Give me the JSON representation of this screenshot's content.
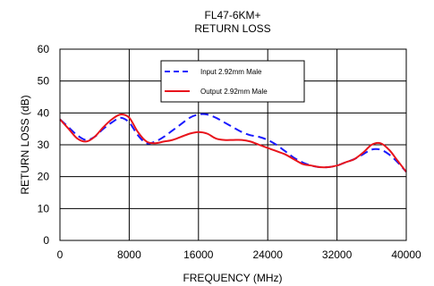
{
  "chart_data": {
    "type": "line",
    "title": "FL47-6KM+",
    "subtitle": "RETURN LOSS",
    "xlabel": "FREQUENCY (MHz)",
    "ylabel": "RETURN LOSS (dB)",
    "xlim": [
      0,
      40000
    ],
    "ylim": [
      0,
      60
    ],
    "xticks": [
      0,
      8000,
      16000,
      24000,
      32000,
      40000
    ],
    "yticks": [
      0,
      10,
      20,
      30,
      40,
      50,
      60
    ],
    "grid": true,
    "legend_position": "top-center",
    "series": [
      {
        "name": "Input 2.92mm Male",
        "color": "#1a1aff",
        "dash": "dashed",
        "x": [
          0,
          1000,
          2000,
          3000,
          4000,
          5000,
          6000,
          7000,
          8000,
          9000,
          10000,
          11000,
          12000,
          13000,
          14000,
          15000,
          16000,
          17000,
          18000,
          19000,
          20000,
          21000,
          22000,
          23000,
          24000,
          25000,
          26000,
          27000,
          28000,
          29000,
          30000,
          31000,
          32000,
          33000,
          34000,
          35000,
          36000,
          37000,
          38000,
          39000,
          40000
        ],
        "y": [
          38,
          35.5,
          33,
          31.5,
          32.5,
          35,
          37,
          38.5,
          37,
          33,
          30.5,
          31,
          32.5,
          34.5,
          36.5,
          38.5,
          39.5,
          39.5,
          38.5,
          37,
          35.5,
          34,
          33,
          32.5,
          31.5,
          30,
          28,
          26,
          24.5,
          23.5,
          23,
          23,
          23.5,
          24.5,
          25.5,
          27,
          28.5,
          28.5,
          27,
          24.5,
          21.5
        ]
      },
      {
        "name": "Output 2.92mm Male",
        "color": "#e8141c",
        "dash": "solid",
        "x": [
          0,
          1000,
          2000,
          3000,
          4000,
          5000,
          6000,
          7000,
          8000,
          9000,
          10000,
          11000,
          12000,
          13000,
          14000,
          15000,
          16000,
          17000,
          18000,
          19000,
          20000,
          21000,
          22000,
          23000,
          24000,
          25000,
          26000,
          27000,
          28000,
          29000,
          30000,
          31000,
          32000,
          33000,
          34000,
          35000,
          36000,
          37000,
          38000,
          39000,
          40000
        ],
        "y": [
          38,
          35,
          32,
          31,
          32.5,
          35.5,
          38,
          39.5,
          38.5,
          34,
          31,
          30.5,
          31,
          31.5,
          32.5,
          33.5,
          34,
          33.5,
          32,
          31.5,
          31.5,
          31.5,
          31,
          30,
          29,
          28,
          27,
          25.5,
          24,
          23.5,
          23,
          23,
          23.5,
          24.5,
          25.5,
          27.5,
          30,
          30.5,
          28.5,
          25,
          21.5
        ]
      }
    ]
  }
}
